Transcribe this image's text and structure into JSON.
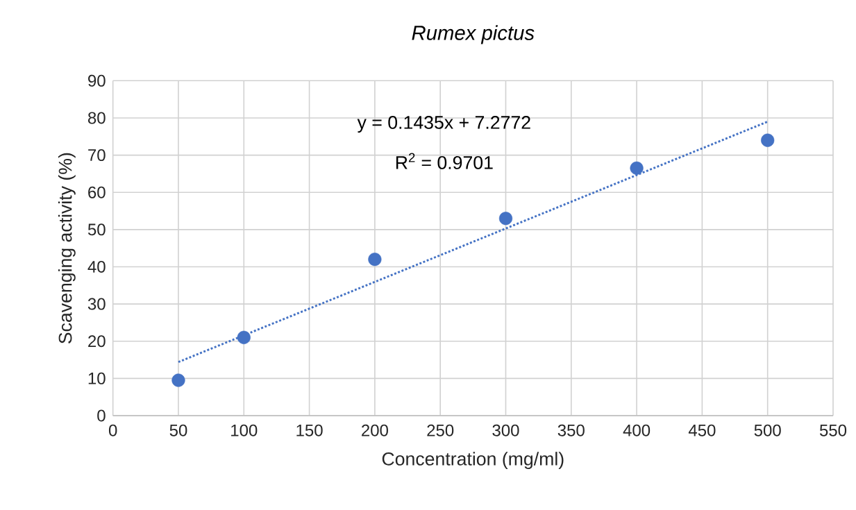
{
  "chart_data": {
    "type": "scatter",
    "title": "Rumex pictus",
    "xlabel": "Concentration (mg/ml)",
    "ylabel": "Scavenging activity (%)",
    "x": [
      50,
      100,
      200,
      300,
      400,
      500
    ],
    "series": [
      {
        "color": "#4472c4",
        "marker": "circle",
        "values": [
          9.5,
          21,
          42,
          53,
          66.5,
          74
        ]
      },
      {
        "type": "line",
        "color": "#4472c4",
        "marker": "none",
        "line_style": "dotted",
        "x": [
          50,
          500
        ],
        "values": [
          14.4,
          79
        ]
      }
    ],
    "annotations": [
      "y = 0.1435x + 7.2772",
      "R$^{2}$ = 0.9701"
    ],
    "xlim": [
      0,
      550
    ],
    "xticks": [
      0,
      50,
      100,
      150,
      200,
      250,
      300,
      350,
      400,
      450,
      500,
      550
    ],
    "ylim": [
      0,
      90
    ],
    "yticks": [
      0,
      10,
      20,
      30,
      40,
      50,
      60,
      70,
      80,
      90
    ],
    "grid": true
  }
}
